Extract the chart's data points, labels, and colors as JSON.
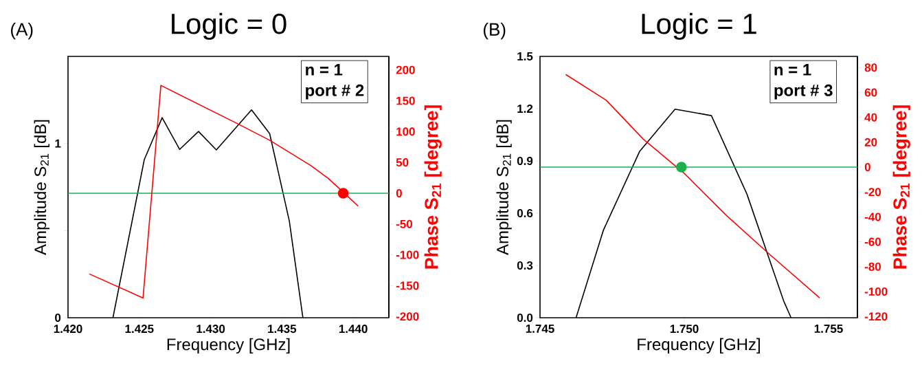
{
  "chart_data": [
    {
      "type": "line",
      "title": "Logic = 0",
      "xlabel": "Frequency [GHz]",
      "ylabel": "Amplitude S$_{21}$ [dB]",
      "y2label": "Phase S$_{21}$ [degree]",
      "annotations": [
        "(A)",
        "n = 1",
        "port # 2"
      ],
      "xlim": [
        1.42,
        1.4425
      ],
      "xticks": [
        {
          "value": 1.42,
          "label": "1.420"
        },
        {
          "value": 1.425,
          "label": "1.425"
        },
        {
          "value": 1.43,
          "label": "1.430"
        },
        {
          "value": 1.435,
          "label": "1.435"
        },
        {
          "value": 1.44,
          "label": "1.440"
        }
      ],
      "ylim": [
        0,
        1.5
      ],
      "yticks": [
        0,
        {
          "value": 0.5,
          "label": null
        },
        1
      ],
      "y2lim": [
        -202,
        222
      ],
      "y2ticks": [
        -200,
        -150,
        -100,
        -50,
        0,
        50,
        100,
        150,
        200
      ],
      "series": [
        {
          "color": "#000000",
          "x": [
            1.42315,
            1.42535,
            1.4266,
            1.42783,
            1.42915,
            1.4304,
            1.43287,
            1.43414,
            1.43552,
            1.43647
          ],
          "values": [
            0,
            0.908,
            1.148,
            0.966,
            1.069,
            0.963,
            1.193,
            1.057,
            0.555,
            0
          ]
        },
        {
          "axis": "y2",
          "color": "#ff0000",
          "x": [
            1.4215,
            1.42526,
            1.42651,
            1.4317,
            1.43414,
            1.43702,
            1.43825,
            1.43933,
            1.44035
          ],
          "values": [
            -131,
            -170,
            175,
            115,
            86,
            45,
            24,
            1,
            -21
          ]
        },
        {
          "type": "scatter",
          "axis": "y2",
          "marker": "circle",
          "color": "#ff0000",
          "x": [
            1.4393
          ],
          "values": [
            0
          ]
        }
      ],
      "ref_lines": [
        {
          "axis": "y2",
          "value": 0,
          "color": "#1db04b"
        }
      ]
    },
    {
      "type": "line",
      "title": "Logic = 1",
      "xlabel": "Frequency [GHz]",
      "ylabel": "Amplitude S$_{21}$ [dB]",
      "y2label": "Phase S$_{21}$ [degree]",
      "annotations": [
        "(B)",
        "n = 1",
        "port # 3"
      ],
      "xlim": [
        1.745,
        1.756
      ],
      "xticks": [
        {
          "value": 1.745,
          "label": "1.745"
        },
        {
          "value": 1.75,
          "label": "1.750"
        },
        {
          "value": 1.755,
          "label": "1.755"
        }
      ],
      "ylim": [
        0,
        1.5
      ],
      "yticks": [
        {
          "value": 0,
          "label": "0.0"
        },
        0.3,
        0.6,
        0.9,
        1.2,
        1.5
      ],
      "y2lim": [
        -121,
        89
      ],
      "y2ticks": [
        -120,
        -100,
        -80,
        -60,
        -40,
        -20,
        0,
        20,
        40,
        60,
        80
      ],
      "series": [
        {
          "color": "#000000",
          "x": [
            1.74625,
            1.7472,
            1.74845,
            1.74968,
            1.75094,
            1.75217,
            1.75345,
            1.7537
          ],
          "values": [
            0,
            0.504,
            0.954,
            1.197,
            1.16,
            0.71,
            0.094,
            0
          ]
        },
        {
          "axis": "y2",
          "color": "#ff0000",
          "x": [
            1.74589,
            1.7473,
            1.74858,
            1.75,
            1.75145,
            1.75288,
            1.75469
          ],
          "values": [
            74.5,
            53.7,
            22.5,
            -5,
            -38.6,
            -68.5,
            -105
          ]
        },
        {
          "type": "scatter",
          "axis": "y2",
          "marker": "circle",
          "color": "#1db04b",
          "x": [
            1.7499
          ],
          "values": [
            0
          ]
        }
      ],
      "ref_lines": [
        {
          "axis": "y2",
          "value": 0,
          "color": "#1db04b"
        }
      ]
    }
  ]
}
